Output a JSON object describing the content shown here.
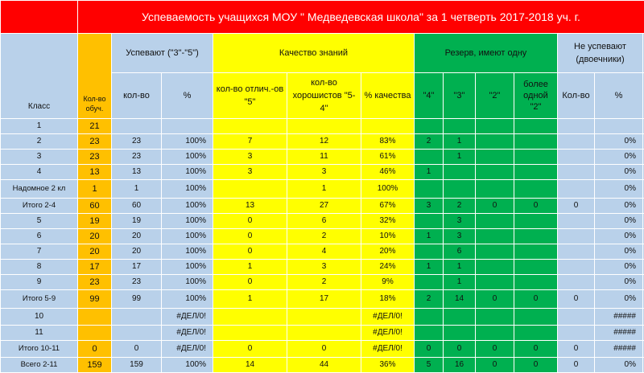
{
  "title": "Успеваемость учащихся МОУ \" Медведевская школа\" за 1 четверть 2017-2018 уч. г.",
  "headers": {
    "klass": "Класс",
    "kolvo_obuch": "Кол-во обуч.",
    "uspevayut": "Успевают (\"3\"-\"5\")",
    "kachestvo": "Качество знаний",
    "reserv": "Резерв, имеют одну",
    "ne_uspevayut": "Не успевают (двоечники)",
    "usp_kolvo": "кол-во",
    "usp_pct": "%",
    "otlich": "кол-во отлич.-ов \"5\"",
    "horosh": "кол-во хорошистов \"5-4\"",
    "kach_pct": "% качества",
    "r4": "\"4\"",
    "r3": "\"3\"",
    "r2": "\"2\"",
    "r_more": "более одной \"2\"",
    "ne_kolvo": "Кол-во",
    "ne_pct": "%"
  },
  "rows": [
    {
      "klass": "1",
      "obuch": "21",
      "usp": "",
      "usp_pct": "",
      "otl": "",
      "hor": "",
      "kach": "",
      "r4": "",
      "r3": "",
      "r2": "",
      "rm": "",
      "ne": "",
      "ne_pct": ""
    },
    {
      "klass": "2",
      "obuch": "23",
      "usp": "23",
      "usp_pct": "100%",
      "otl": "7",
      "hor": "12",
      "kach": "83%",
      "r4": "2",
      "r3": "1",
      "r2": "",
      "rm": "",
      "ne": "",
      "ne_pct": "0%"
    },
    {
      "klass": "3",
      "obuch": "23",
      "usp": "23",
      "usp_pct": "100%",
      "otl": "3",
      "hor": "11",
      "kach": "61%",
      "r4": "",
      "r3": "1",
      "r2": "",
      "rm": "",
      "ne": "",
      "ne_pct": "0%"
    },
    {
      "klass": "4",
      "obuch": "13",
      "usp": "13",
      "usp_pct": "100%",
      "otl": "3",
      "hor": "3",
      "kach": "46%",
      "r4": "1",
      "r3": "",
      "r2": "",
      "rm": "",
      "ne": "",
      "ne_pct": "0%"
    },
    {
      "klass": "Надомное 2 кл",
      "obuch": "1",
      "usp": "1",
      "usp_pct": "100%",
      "otl": "",
      "hor": "1",
      "kach": "100%",
      "r4": "",
      "r3": "",
      "r2": "",
      "rm": "",
      "ne": "",
      "ne_pct": "0%"
    },
    {
      "klass": "Итого 2-4",
      "obuch": "60",
      "usp": "60",
      "usp_pct": "100%",
      "otl": "13",
      "hor": "27",
      "kach": "67%",
      "r4": "3",
      "r3": "2",
      "r2": "0",
      "rm": "0",
      "ne": "0",
      "ne_pct": "0%"
    },
    {
      "klass": "5",
      "obuch": "19",
      "usp": "19",
      "usp_pct": "100%",
      "otl": "0",
      "hor": "6",
      "kach": "32%",
      "r4": "",
      "r3": "3",
      "r2": "",
      "rm": "",
      "ne": "",
      "ne_pct": "0%"
    },
    {
      "klass": "6",
      "obuch": "20",
      "usp": "20",
      "usp_pct": "100%",
      "otl": "0",
      "hor": "2",
      "kach": "10%",
      "r4": "1",
      "r3": "3",
      "r2": "",
      "rm": "",
      "ne": "",
      "ne_pct": "0%"
    },
    {
      "klass": "7",
      "obuch": "20",
      "usp": "20",
      "usp_pct": "100%",
      "otl": "0",
      "hor": "4",
      "kach": "20%",
      "r4": "",
      "r3": "6",
      "r2": "",
      "rm": "",
      "ne": "",
      "ne_pct": "0%"
    },
    {
      "klass": "8",
      "obuch": "17",
      "usp": "17",
      "usp_pct": "100%",
      "otl": "1",
      "hor": "3",
      "kach": "24%",
      "r4": "1",
      "r3": "1",
      "r2": "",
      "rm": "",
      "ne": "",
      "ne_pct": "0%"
    },
    {
      "klass": "9",
      "obuch": "23",
      "usp": "23",
      "usp_pct": "100%",
      "otl": "0",
      "hor": "2",
      "kach": "9%",
      "r4": "",
      "r3": "1",
      "r2": "",
      "rm": "",
      "ne": "",
      "ne_pct": "0%"
    },
    {
      "klass": "Итого 5-9",
      "obuch": "99",
      "usp": "99",
      "usp_pct": "100%",
      "otl": "1",
      "hor": "17",
      "kach": "18%",
      "r4": "2",
      "r3": "14",
      "r2": "0",
      "rm": "0",
      "ne": "0",
      "ne_pct": "0%"
    },
    {
      "klass": "10",
      "obuch": "",
      "usp": "",
      "usp_pct": "#ДЕЛ/0!",
      "otl": "",
      "hor": "",
      "kach": "#ДЕЛ/0!",
      "r4": "",
      "r3": "",
      "r2": "",
      "rm": "",
      "ne": "",
      "ne_pct": "#####"
    },
    {
      "klass": "11",
      "obuch": "",
      "usp": "",
      "usp_pct": "#ДЕЛ/0!",
      "otl": "",
      "hor": "",
      "kach": "#ДЕЛ/0!",
      "r4": "",
      "r3": "",
      "r2": "",
      "rm": "",
      "ne": "",
      "ne_pct": "#####"
    },
    {
      "klass": "Итого 10-11",
      "obuch": "0",
      "usp": "0",
      "usp_pct": "#ДЕЛ/0!",
      "otl": "0",
      "hor": "0",
      "kach": "#ДЕЛ/0!",
      "r4": "0",
      "r3": "0",
      "r2": "0",
      "rm": "0",
      "ne": "0",
      "ne_pct": "#####"
    },
    {
      "klass": "Всего 2-11",
      "obuch": "159",
      "usp": "159",
      "usp_pct": "100%",
      "otl": "14",
      "hor": "44",
      "kach": "36%",
      "r4": "5",
      "r3": "16",
      "r2": "0",
      "rm": "0",
      "ne": "0",
      "ne_pct": "0%"
    }
  ]
}
